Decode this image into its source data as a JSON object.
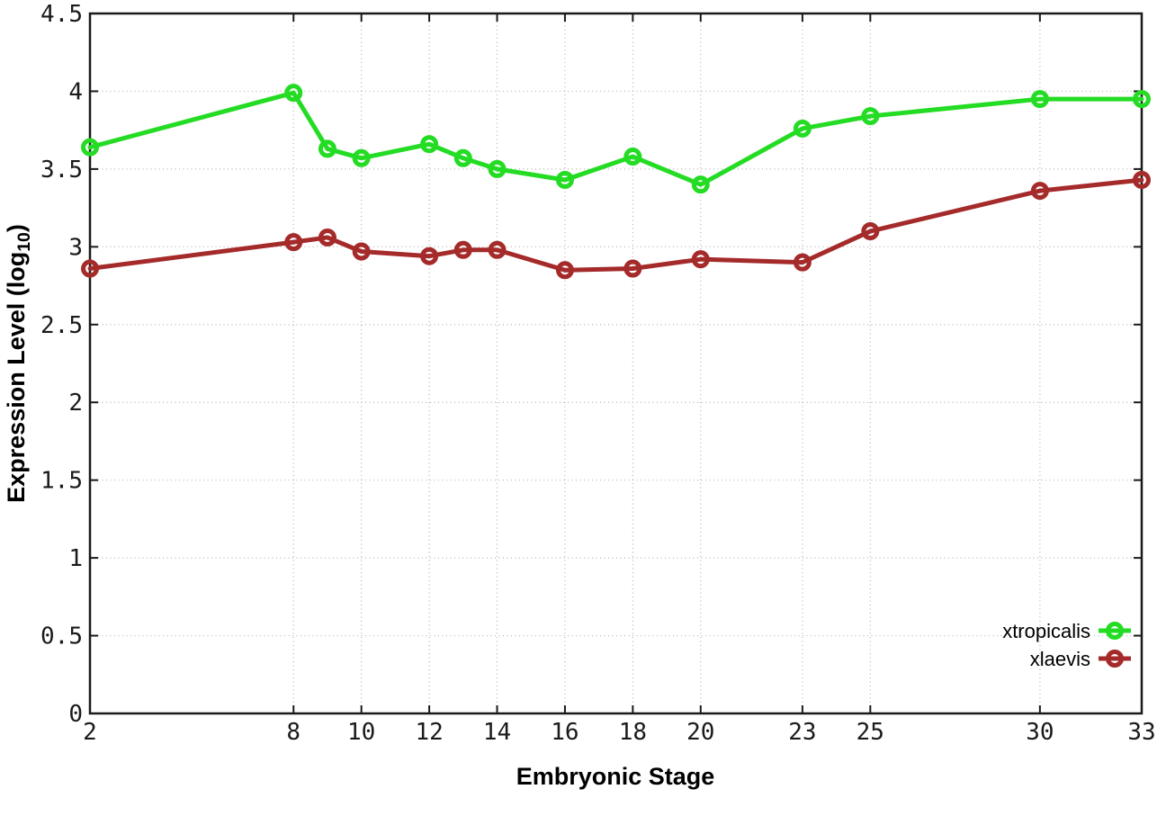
{
  "figure": {
    "background": "#ffffff",
    "border_color": "#1a1a1a",
    "grid_color": "#b3b3b3",
    "tick_color": "#1a1a1a"
  },
  "chart_data": {
    "type": "line",
    "title": "",
    "xlabel": "Embryonic Stage",
    "ylabel": "Expression Level (log10)",
    "ylabel_parts": {
      "main": "Expression Level (log",
      "sub": "10",
      "end": ")"
    },
    "xlim": [
      2,
      33
    ],
    "ylim": [
      0,
      4.5
    ],
    "x_ticks": [
      2,
      8,
      10,
      12,
      14,
      16,
      18,
      20,
      23,
      25,
      30,
      33
    ],
    "y_ticks": [
      0,
      0.5,
      1,
      1.5,
      2,
      2.5,
      3,
      3.5,
      4,
      4.5
    ],
    "grid": true,
    "legend_position": "bottom-right",
    "marker": "open-circle",
    "x": [
      2,
      8,
      9,
      10,
      12,
      13,
      14,
      16,
      18,
      20,
      23,
      25,
      30,
      33
    ],
    "series": [
      {
        "name": "xtropicalis",
        "color": "#23dc23",
        "values": [
          3.64,
          3.99,
          3.63,
          3.57,
          3.66,
          3.57,
          3.5,
          3.43,
          3.58,
          3.4,
          3.76,
          3.84,
          3.95,
          3.95
        ]
      },
      {
        "name": "xlaevis",
        "color": "#a52a2a",
        "values": [
          2.86,
          3.03,
          3.06,
          2.97,
          2.94,
          2.98,
          2.98,
          2.85,
          2.86,
          2.92,
          2.9,
          3.1,
          3.36,
          3.43
        ]
      }
    ]
  }
}
